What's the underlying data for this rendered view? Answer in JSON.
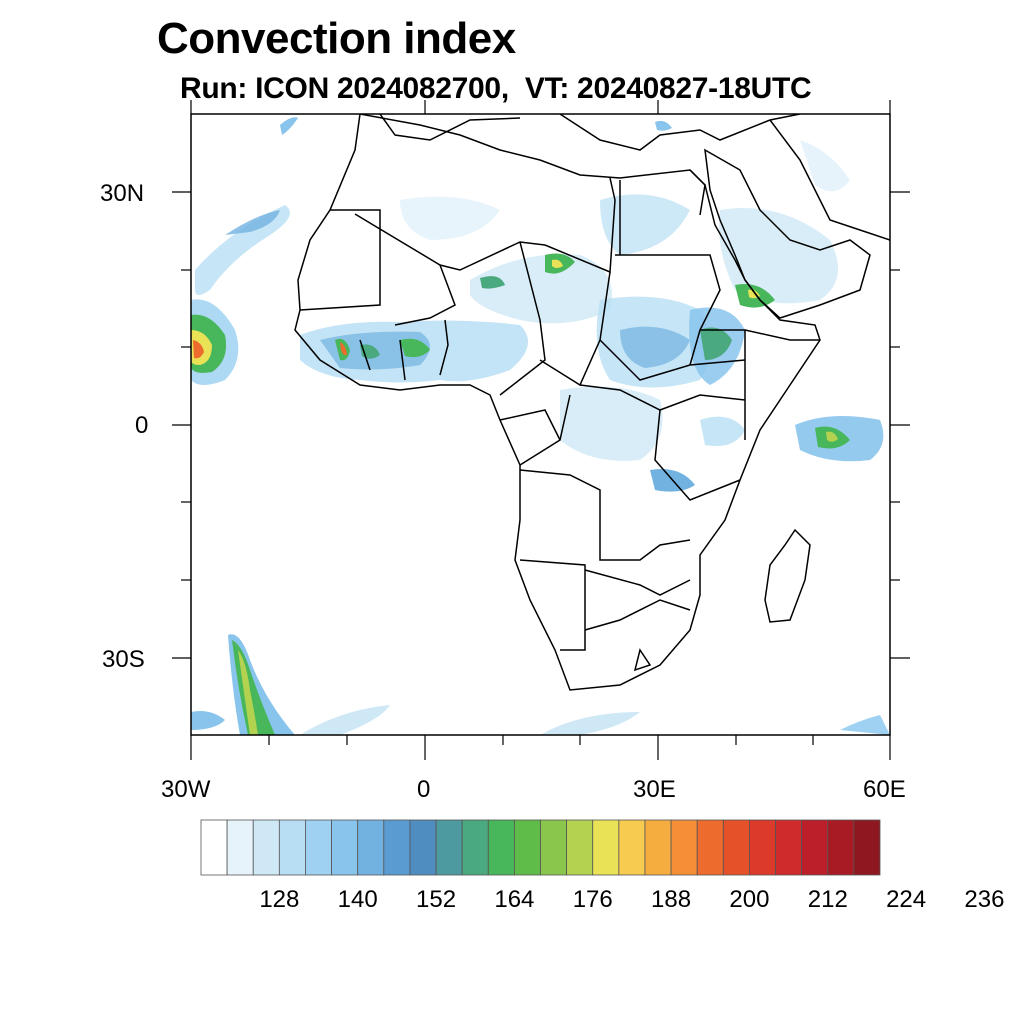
{
  "title": "Convection index",
  "subtitle": "Run: ICON 2024082700,  VT: 20240827-18UTC",
  "lat_ticks": [
    "30N",
    "0",
    "30S"
  ],
  "lon_ticks": [
    "30W",
    "0",
    "30E",
    "60E"
  ],
  "colorbar": {
    "labels": [
      "128",
      "140",
      "152",
      "164",
      "176",
      "188",
      "200",
      "212",
      "224",
      "236"
    ],
    "colors": [
      "#ffffff",
      "#e6f3fb",
      "#cfe8f6",
      "#b8def4",
      "#9fd2f2",
      "#88c4ec",
      "#72b2e1",
      "#5a9cd1",
      "#4f8cc0",
      "#4d9aa0",
      "#4aa97e",
      "#48b65a",
      "#60bc48",
      "#8ac64b",
      "#b3d24f",
      "#e9e257",
      "#f7cb50",
      "#f6ad40",
      "#f48f38",
      "#ee6b2e",
      "#e5522a",
      "#dc3a2b",
      "#cf2a2c",
      "#bc1e2a",
      "#a81a24",
      "#8e1820"
    ]
  }
}
